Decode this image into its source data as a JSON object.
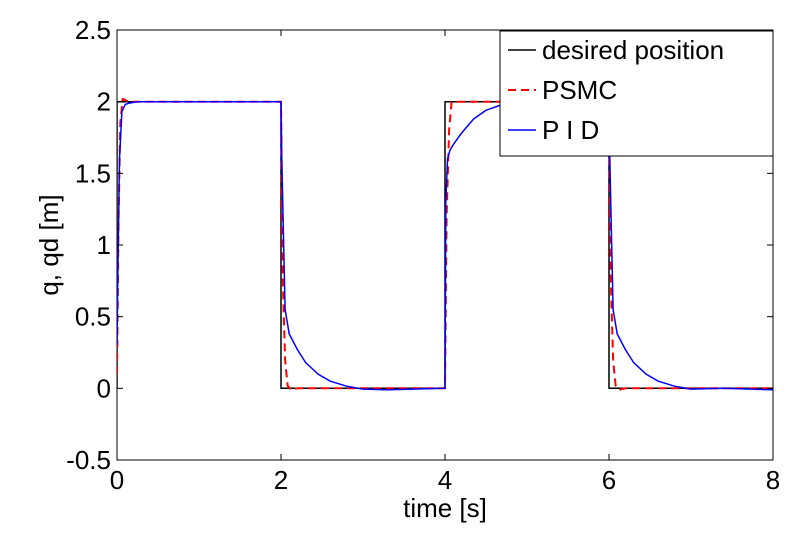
{
  "chart_data": {
    "type": "line",
    "title": "",
    "xlabel": "time [s]",
    "ylabel": "q, qd [m]",
    "xlim": [
      0,
      8
    ],
    "ylim": [
      -0.5,
      2.5
    ],
    "xticks": [
      0,
      2,
      4,
      6,
      8
    ],
    "yticks": [
      -0.5,
      0,
      0.5,
      1,
      1.5,
      2,
      2.5
    ],
    "xtick_labels": [
      "0",
      "2",
      "4",
      "6",
      "8"
    ],
    "ytick_labels": [
      "-0.5",
      "0",
      "0.5",
      "1",
      "1.5",
      "2",
      "2.5"
    ],
    "grid": false,
    "legend_position": "top-right",
    "series": [
      {
        "name": "desired position",
        "color": "#000000",
        "style": "solid",
        "x": [
          0,
          0,
          2,
          2,
          4,
          4,
          6,
          6,
          8
        ],
        "y": [
          0,
          2,
          2,
          0,
          0,
          2,
          2,
          0,
          0
        ]
      },
      {
        "name": "PSMC",
        "color": "#ff0000",
        "style": "dashed",
        "x": [
          0,
          0.02,
          0.04,
          0.07,
          0.1,
          0.15,
          2.0,
          2.02,
          2.05,
          2.08,
          2.12,
          2.2,
          4.0,
          4.02,
          4.05,
          4.08,
          4.12,
          4.2,
          6.0,
          6.02,
          6.05,
          6.08,
          6.12,
          6.2,
          8.0
        ],
        "y": [
          0.1,
          1.2,
          1.85,
          2.02,
          2.01,
          2.0,
          2.0,
          0.8,
          0.2,
          0.02,
          -0.01,
          0.0,
          0.0,
          1.2,
          1.8,
          2.0,
          2.0,
          2.0,
          2.0,
          0.8,
          0.2,
          0.02,
          -0.01,
          0.0,
          0.0
        ]
      },
      {
        "name": "P I D",
        "color": "#0000ff",
        "style": "solid",
        "x": [
          0,
          0.01,
          0.03,
          0.06,
          0.1,
          0.15,
          0.25,
          0.5,
          1.0,
          2.0,
          2.01,
          2.05,
          2.1,
          2.2,
          2.3,
          2.45,
          2.6,
          2.8,
          3.0,
          3.3,
          3.6,
          4.0,
          4.01,
          4.03,
          4.06,
          4.1,
          4.2,
          4.35,
          4.5,
          4.7,
          4.9,
          5.0,
          5.5,
          6.0,
          6.01,
          6.05,
          6.1,
          6.2,
          6.3,
          6.45,
          6.6,
          6.8,
          7.0,
          7.4,
          8.0
        ],
        "y": [
          0.3,
          0.8,
          1.6,
          1.93,
          1.98,
          1.99,
          2.0,
          2.0,
          2.0,
          2.0,
          1.6,
          0.55,
          0.38,
          0.27,
          0.18,
          0.1,
          0.05,
          0.015,
          -0.005,
          -0.01,
          -0.005,
          0.0,
          1.3,
          1.6,
          1.66,
          1.7,
          1.78,
          1.88,
          1.94,
          1.98,
          2.0,
          2.0,
          2.0,
          2.0,
          1.6,
          0.55,
          0.38,
          0.27,
          0.18,
          0.1,
          0.05,
          0.015,
          -0.005,
          0.0,
          -0.01
        ]
      }
    ]
  }
}
